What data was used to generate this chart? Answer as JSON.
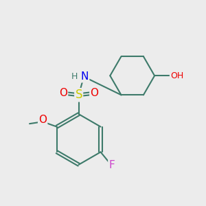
{
  "background_color": "#ececec",
  "bond_color": "#3d7a6a",
  "bond_width": 1.5,
  "atom_colors": {
    "N": "#0000ee",
    "O": "#ee0000",
    "S": "#cccc00",
    "F": "#cc44cc",
    "H": "#3d7a6a",
    "C": "#3d7a6a"
  },
  "font_size": 9
}
